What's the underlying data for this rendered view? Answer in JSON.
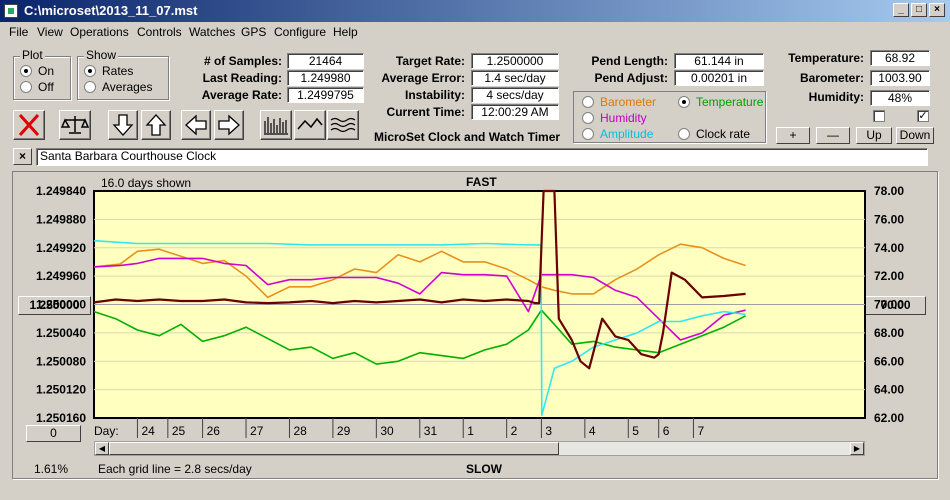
{
  "window": {
    "title": "C:\\microset\\2013_11_07.mst"
  },
  "menu": [
    "File",
    "View",
    "Operations",
    "Controls",
    "Watches",
    "GPS",
    "Configure",
    "Help"
  ],
  "plot_group": {
    "title": "Plot",
    "options": [
      "On",
      "Off"
    ],
    "selected": "On"
  },
  "show_group": {
    "title": "Show",
    "options": [
      "Rates",
      "Averages"
    ],
    "selected": "Rates"
  },
  "stats": {
    "samples_label": "# of Samples:",
    "samples_value": "21464",
    "last_label": "Last Reading:",
    "last_value": "1.249980",
    "avg_rate_label": "Average Rate:",
    "avg_rate_value": "1.2499795"
  },
  "timing": {
    "target_label": "Target Rate:",
    "target_value": "1.2500000",
    "avg_error_label": "Average Error:",
    "avg_error_value": "1.4 sec/day",
    "instability_label": "Instability:",
    "instability_value": "4 secs/day",
    "time_label": "Current Time:",
    "time_value": "12:00:29 AM",
    "app_caption": "MicroSet Clock and Watch Timer"
  },
  "pendulum": {
    "length_label": "Pend Length:",
    "length_value": "61.144 in",
    "adjust_label": "Pend Adjust:",
    "adjust_value": "0.00201 in"
  },
  "sensors": {
    "temperature_label": "Temperature:",
    "temperature_value": "68.92",
    "barometer_label": "Barometer:",
    "barometer_value": "1003.90",
    "humidity_label": "Humidity:",
    "humidity_value": "48%"
  },
  "series_select": {
    "options": [
      {
        "label": "Barometer",
        "color": "#e07800"
      },
      {
        "label": "Temperature",
        "color": "#00a000"
      },
      {
        "label": "Humidity",
        "color": "#c000c0"
      },
      {
        "label": "Amplitude",
        "color": "#00c0e0"
      },
      {
        "label": "Clock rate",
        "color": "#000000"
      }
    ],
    "selected": "Temperature"
  },
  "scale_buttons": [
    "+",
    "—",
    "Up",
    "Down"
  ],
  "toolbar_icons": [
    "delete-icon",
    "balance-scale-icon",
    "arrow-down-icon",
    "arrow-up-icon",
    "arrow-left-icon",
    "arrow-right-icon",
    "bar-graph-icon",
    "line-graph-icon",
    "wave-graph-icon"
  ],
  "description": {
    "close_label": "×",
    "value": "Santa Barbara Courthouse Clock"
  },
  "plot": {
    "days_shown": "16.0 days shown",
    "top_label": "FAST",
    "bottom_label": "SLOW",
    "grid_note": "Each grid line = 2.8 secs/day",
    "percent": "1.61%",
    "left_button": "1.250000",
    "right_button": "70.00",
    "zero_button": "0",
    "day_label": "Day:"
  },
  "chart_data": {
    "type": "line",
    "left_axis": {
      "ticks": [
        "1.249840",
        "1.249880",
        "1.249920",
        "1.249960",
        "1.250000",
        "1.250040",
        "1.250080",
        "1.250120",
        "1.250160"
      ],
      "ylim": [
        1.24984,
        1.25016
      ]
    },
    "right_axis": {
      "ticks": [
        "78.00",
        "76.00",
        "74.00",
        "72.00",
        "70.00",
        "68.00",
        "66.00",
        "64.00",
        "62.00"
      ],
      "ylim": [
        62,
        78
      ]
    },
    "day_ticks": [
      "24",
      "25",
      "26",
      "27",
      "28",
      "29",
      "30",
      "31",
      "1",
      "2",
      "3",
      "4",
      "5",
      "6",
      "7"
    ],
    "xlim": [
      0,
      16
    ],
    "day_positions": [
      1.0,
      1.7,
      2.5,
      3.5,
      4.5,
      5.5,
      6.5,
      7.5,
      8.5,
      9.5,
      10.3,
      11.3,
      12.3,
      13.0,
      13.8
    ],
    "series": [
      {
        "color": "#e8901c",
        "axis": "left",
        "x": [
          0,
          0.6,
          1,
          1.5,
          2,
          2.5,
          3,
          3.5,
          4,
          4.5,
          5,
          5.5,
          6,
          6.5,
          7,
          7.5,
          8,
          8.5,
          9,
          9.5,
          10,
          10.3,
          10.6,
          11,
          11.5,
          12,
          12.5,
          13,
          13.5,
          14,
          14.5,
          15
        ],
        "y": [
          1.249947,
          1.249943,
          1.249925,
          1.249922,
          1.249932,
          1.249942,
          1.249938,
          1.24996,
          1.24999,
          1.249975,
          1.249975,
          1.249965,
          1.24995,
          1.249955,
          1.24993,
          1.24994,
          1.249925,
          1.24994,
          1.24994,
          1.24995,
          1.249965,
          1.249975,
          1.24998,
          1.249985,
          1.249985,
          1.249965,
          1.24995,
          1.24993,
          1.249915,
          1.24992,
          1.249935,
          1.249945
        ]
      },
      {
        "color": "#00b000",
        "axis": "right",
        "x": [
          0,
          0.5,
          1,
          1.5,
          2,
          2.5,
          3,
          3.5,
          4,
          4.5,
          5,
          5.5,
          6,
          6.5,
          7,
          7.5,
          8,
          8.5,
          9,
          9.5,
          10,
          10.3,
          10.6,
          11,
          11.5,
          12,
          12.5,
          13,
          13.5,
          14,
          14.5,
          15
        ],
        "y": [
          69.5,
          69.0,
          68.2,
          67.8,
          68.6,
          67.4,
          67.8,
          68.4,
          67.6,
          66.8,
          67.0,
          66.2,
          66.6,
          65.8,
          66.0,
          66.6,
          66.4,
          66.2,
          66.8,
          67.2,
          68.2,
          69.6,
          68.6,
          67.2,
          67.4,
          67.0,
          66.8,
          66.6,
          67.2,
          67.8,
          68.4,
          69.2
        ]
      },
      {
        "color": "#d000d0",
        "axis": "left",
        "x": [
          0,
          0.6,
          1,
          1.5,
          2,
          2.5,
          3,
          3.5,
          4,
          4.5,
          5,
          5.5,
          6,
          6.5,
          7,
          7.5,
          8,
          8.5,
          9,
          9.5,
          10,
          10.3,
          10.6,
          11,
          11.5,
          12,
          12.5,
          13,
          13.5,
          14,
          14.5,
          15
        ],
        "y": [
          1.249947,
          1.249945,
          1.249942,
          1.249935,
          1.249935,
          1.249935,
          1.249942,
          1.249945,
          1.249972,
          1.249965,
          1.249965,
          1.249962,
          1.249962,
          1.249962,
          1.24997,
          1.249985,
          1.249955,
          1.249958,
          1.249958,
          1.24996,
          1.25001,
          1.249958,
          1.249958,
          1.249958,
          1.249962,
          1.24998,
          1.24999,
          1.25002,
          1.25005,
          1.25004,
          1.250015,
          1.250008
        ]
      },
      {
        "color": "#30e8f0",
        "axis": "right",
        "x": [
          0,
          1,
          2,
          3,
          4,
          5,
          6,
          7,
          8,
          9,
          10,
          10.29,
          10.31,
          10.6,
          11,
          11.5,
          12,
          12.5,
          13,
          13.5,
          14,
          14.5,
          15
        ],
        "y": [
          74.5,
          74.3,
          74.3,
          74.3,
          74.3,
          74.2,
          74.2,
          74.2,
          74.2,
          74.3,
          74.2,
          74.2,
          62.2,
          65.5,
          66.0,
          67.0,
          67.5,
          68.0,
          68.8,
          68.8,
          69.2,
          69.5,
          69.3
        ]
      },
      {
        "color": "#6a0000",
        "axis": "left",
        "x": [
          0,
          0.5,
          1,
          1.5,
          2,
          2.5,
          3,
          3.5,
          4,
          4.5,
          5,
          5.5,
          6,
          6.5,
          7,
          7.5,
          8,
          8.5,
          9,
          9.5,
          10,
          10.15,
          10.25,
          10.35,
          10.6,
          10.7,
          11,
          11.2,
          11.4,
          11.7,
          12,
          12.3,
          12.6,
          12.9,
          13.0,
          13.1,
          13.3,
          13.6,
          14,
          14.5,
          15
        ],
        "y": [
          1.249997,
          1.249993,
          1.249995,
          1.249993,
          1.249995,
          1.249995,
          1.249993,
          1.249997,
          1.249998,
          1.249997,
          1.249995,
          1.249998,
          1.249995,
          1.249997,
          1.249995,
          1.249993,
          1.249997,
          1.249993,
          1.249995,
          1.249993,
          1.249995,
          1.249998,
          1.249998,
          1.24984,
          1.24984,
          1.25002,
          1.25005,
          1.25008,
          1.25009,
          1.25002,
          1.250045,
          1.25005,
          1.25007,
          1.250075,
          1.25007,
          1.25004,
          1.249955,
          1.249965,
          1.24999,
          1.249988,
          1.249985
        ]
      }
    ]
  }
}
